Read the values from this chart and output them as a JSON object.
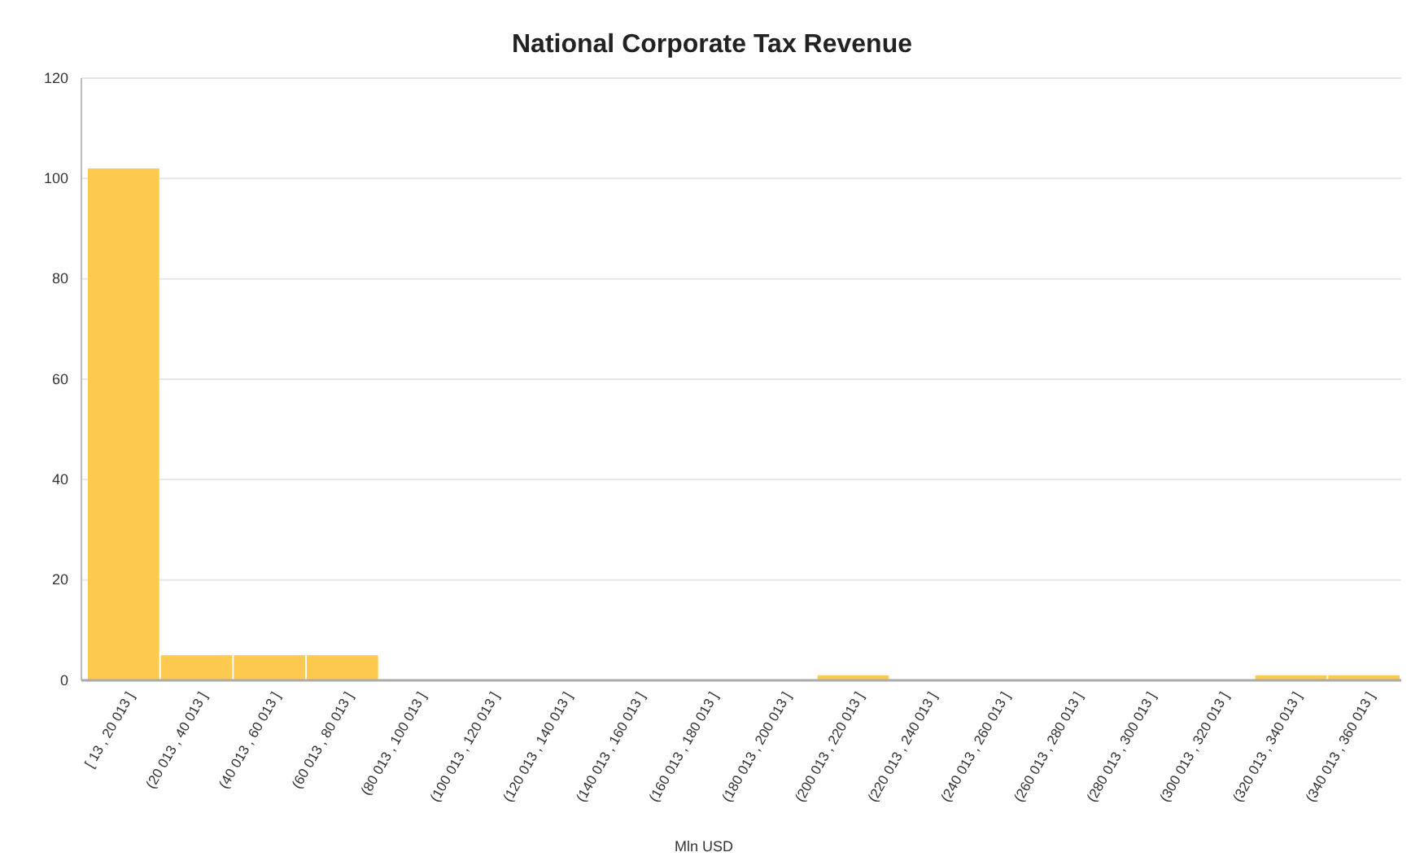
{
  "chart_data": {
    "type": "bar",
    "title": "National Corporate Tax Revenue",
    "xlabel": "Mln USD",
    "categories": [
      "[ 13 , 20 013 ]",
      "(20 013 , 40 013 ]",
      "(40 013 , 60 013 ]",
      "(60 013 , 80 013 ]",
      "(80 013 , 100 013 ]",
      "(100 013 , 120 013 ]",
      "(120 013 , 140 013 ]",
      "(140 013 , 160 013 ]",
      "(160 013 , 180 013 ]",
      "(180 013 , 200 013 ]",
      "(200 013 , 220 013 ]",
      "(220 013 , 240 013 ]",
      "(240 013 , 260 013 ]",
      "(260 013 , 280 013 ]",
      "(280 013 , 300 013 ]",
      "(300 013 , 320 013 ]",
      "(320 013 , 340 013 ]",
      "(340 013 , 360 013 ]"
    ],
    "values": [
      102,
      5,
      5,
      5,
      0,
      0,
      0,
      0,
      0,
      0,
      1,
      0,
      0,
      0,
      0,
      0,
      1,
      1
    ],
    "color": "#fdc94f",
    "ylim": [
      0,
      120
    ],
    "yticks": [
      0,
      20,
      40,
      60,
      80,
      100,
      120
    ],
    "grid": "y"
  }
}
